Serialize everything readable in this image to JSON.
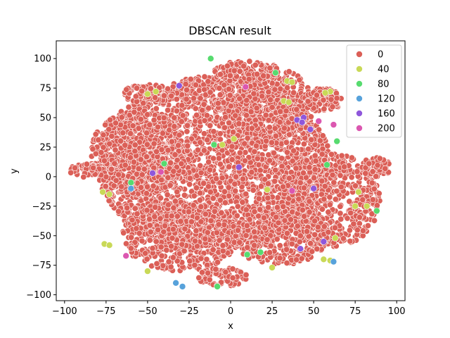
{
  "chart_data": {
    "type": "scatter",
    "title": "DBSCAN result",
    "xlabel": "x",
    "ylabel": "y",
    "xlim": [
      -105,
      105
    ],
    "ylim": [
      -105,
      115
    ],
    "xticks": [
      -100,
      -75,
      -50,
      -25,
      0,
      25,
      50,
      75,
      100
    ],
    "yticks": [
      -100,
      -75,
      -50,
      -25,
      0,
      25,
      50,
      75,
      100
    ],
    "grid": false,
    "legend_position": "top-right",
    "legend": [
      {
        "label": "0",
        "color": "#db5f57"
      },
      {
        "label": "40",
        "color": "#c9d957"
      },
      {
        "label": "80",
        "color": "#57db6f"
      },
      {
        "label": "120",
        "color": "#57a2db"
      },
      {
        "label": "160",
        "color": "#8f57db"
      },
      {
        "label": "200",
        "color": "#db57b0"
      }
    ],
    "base_cluster": {
      "label": "0",
      "color": "#db5f57"
    },
    "outlier_points": [
      {
        "x": 34,
        "y": 81,
        "cluster": "40"
      },
      {
        "x": 37,
        "y": 80,
        "cluster": "40"
      },
      {
        "x": 32,
        "y": 64,
        "cluster": "40"
      },
      {
        "x": 35,
        "y": 63,
        "cluster": "40"
      },
      {
        "x": -45,
        "y": 72,
        "cluster": "40"
      },
      {
        "x": -50,
        "y": 70,
        "cluster": "40"
      },
      {
        "x": 60,
        "y": 72,
        "cluster": "40"
      },
      {
        "x": 57,
        "y": 71,
        "cluster": "40"
      },
      {
        "x": -77,
        "y": -13,
        "cluster": "40"
      },
      {
        "x": -73,
        "y": -15,
        "cluster": "40"
      },
      {
        "x": -76,
        "y": -57,
        "cluster": "40"
      },
      {
        "x": -73,
        "y": -58,
        "cluster": "40"
      },
      {
        "x": 56,
        "y": -70,
        "cluster": "40"
      },
      {
        "x": 60,
        "y": -71,
        "cluster": "40"
      },
      {
        "x": 63,
        "y": -52,
        "cluster": "40"
      },
      {
        "x": 77,
        "y": -13,
        "cluster": "40"
      },
      {
        "x": 75,
        "y": -25,
        "cluster": "40"
      },
      {
        "x": 82,
        "y": -25,
        "cluster": "40"
      },
      {
        "x": 25,
        "y": -77,
        "cluster": "40"
      },
      {
        "x": -50,
        "y": -80,
        "cluster": "40"
      },
      {
        "x": 2,
        "y": 32,
        "cluster": "40"
      },
      {
        "x": -5,
        "y": 27,
        "cluster": "40"
      },
      {
        "x": 22,
        "y": -11,
        "cluster": "40"
      },
      {
        "x": -12,
        "y": 100,
        "cluster": "80"
      },
      {
        "x": 27,
        "y": 88,
        "cluster": "80"
      },
      {
        "x": 88,
        "y": -29,
        "cluster": "80"
      },
      {
        "x": 58,
        "y": 10,
        "cluster": "80"
      },
      {
        "x": 64,
        "y": 30,
        "cluster": "80"
      },
      {
        "x": 18,
        "y": -64,
        "cluster": "80"
      },
      {
        "x": -10,
        "y": 27,
        "cluster": "80"
      },
      {
        "x": -40,
        "y": 11,
        "cluster": "80"
      },
      {
        "x": -60,
        "y": -5,
        "cluster": "80"
      },
      {
        "x": 10,
        "y": -66,
        "cluster": "80"
      },
      {
        "x": -8,
        "y": -93,
        "cluster": "80"
      },
      {
        "x": -33,
        "y": -90,
        "cluster": "120"
      },
      {
        "x": -29,
        "y": -93,
        "cluster": "120"
      },
      {
        "x": 62,
        "y": -72,
        "cluster": "120"
      },
      {
        "x": -60,
        "y": -10,
        "cluster": "120"
      },
      {
        "x": 40,
        "y": 48,
        "cluster": "160"
      },
      {
        "x": 44,
        "y": 50,
        "cluster": "160"
      },
      {
        "x": 43,
        "y": 46,
        "cluster": "160"
      },
      {
        "x": 48,
        "y": 40,
        "cluster": "160"
      },
      {
        "x": 5,
        "y": 8,
        "cluster": "160"
      },
      {
        "x": -47,
        "y": 3,
        "cluster": "160"
      },
      {
        "x": -31,
        "y": 77,
        "cluster": "160"
      },
      {
        "x": 50,
        "y": -10,
        "cluster": "160"
      },
      {
        "x": 42,
        "y": -61,
        "cluster": "160"
      },
      {
        "x": 56,
        "y": -55,
        "cluster": "160"
      },
      {
        "x": 62,
        "y": 44,
        "cluster": "200"
      },
      {
        "x": -42,
        "y": 4,
        "cluster": "200"
      },
      {
        "x": -63,
        "y": -67,
        "cluster": "200"
      },
      {
        "x": 9,
        "y": 76,
        "cluster": "200"
      },
      {
        "x": 53,
        "y": 47,
        "cluster": "200"
      },
      {
        "x": 37,
        "y": -12,
        "cluster": "200"
      }
    ]
  }
}
